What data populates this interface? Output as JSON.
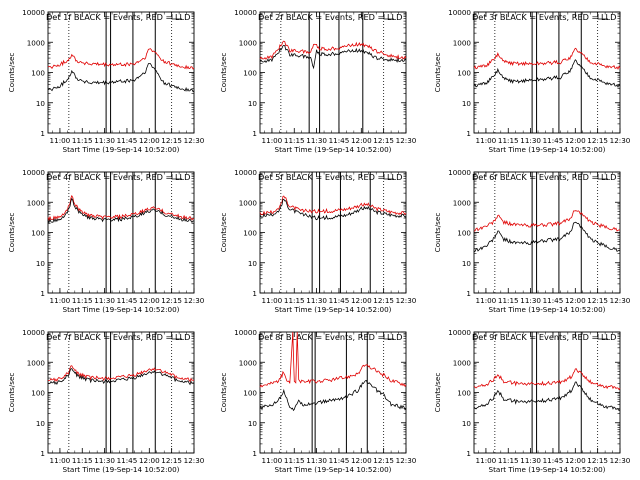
{
  "colors": {
    "events": "#000000",
    "lld": "#e00000",
    "frame": "#000000",
    "background": "#ffffff"
  },
  "chart_data": [
    {
      "type": "line",
      "title": "Det 1f BLACK = Events, RED = LLD",
      "xlabel": "Start Time (19-Sep-14 10:52:00)",
      "ylabel": "Counts/sec",
      "y_scale": "log",
      "ylim": [
        1,
        10000
      ],
      "yticks": [
        "1",
        "10",
        "100",
        "1000",
        "10000"
      ],
      "xlim": [
        "10:52",
        "12:30"
      ],
      "xticks": [
        "11:00",
        "11:15",
        "11:30",
        "11:45",
        "12:00",
        "12:15",
        "12:30"
      ],
      "dotted_lines": [
        "11:06",
        "12:15"
      ],
      "solid_lines": [
        "11:31",
        "11:34",
        "11:49",
        "12:04"
      ],
      "series": [
        {
          "name": "Events",
          "color": "#000000",
          "x": [
            "10:52",
            "11:00",
            "11:05",
            "11:08",
            "11:12",
            "11:20",
            "11:30",
            "11:40",
            "11:50",
            "11:57",
            "12:00",
            "12:04",
            "12:10",
            "12:20",
            "12:30"
          ],
          "values": [
            25,
            35,
            60,
            110,
            60,
            45,
            45,
            50,
            55,
            100,
            200,
            120,
            45,
            30,
            25
          ]
        },
        {
          "name": "LLD",
          "color": "#e00000",
          "x": [
            "10:52",
            "11:00",
            "11:05",
            "11:08",
            "11:12",
            "11:20",
            "11:30",
            "11:40",
            "11:50",
            "11:57",
            "12:00",
            "12:04",
            "12:10",
            "12:20",
            "12:30"
          ],
          "values": [
            140,
            180,
            250,
            380,
            230,
            190,
            180,
            180,
            190,
            300,
            600,
            450,
            230,
            160,
            140
          ]
        }
      ]
    },
    {
      "type": "line",
      "title": "Det 2f BLACK = Events, RED = LLD",
      "xlabel": "Start Time (19-Sep-14 10:52:00)",
      "ylabel": "Counts/sec",
      "y_scale": "log",
      "ylim": [
        1,
        10000
      ],
      "yticks": [
        "1",
        "10",
        "100",
        "1000",
        "10000"
      ],
      "xlim": [
        "10:52",
        "12:30"
      ],
      "xticks": [
        "11:00",
        "11:15",
        "11:30",
        "11:45",
        "12:00",
        "12:15",
        "12:30"
      ],
      "dotted_lines": [
        "11:06",
        "12:15"
      ],
      "solid_lines": [
        "11:25",
        "11:32",
        "11:45",
        "12:01"
      ],
      "series": [
        {
          "name": "Events",
          "color": "#000000",
          "x": [
            "10:52",
            "11:00",
            "11:08",
            "11:12",
            "11:20",
            "11:26",
            "11:28",
            "11:30",
            "11:33",
            "11:40",
            "11:50",
            "12:00",
            "12:04",
            "12:10",
            "12:20",
            "12:30"
          ],
          "values": [
            240,
            250,
            800,
            400,
            350,
            300,
            150,
            500,
            400,
            400,
            500,
            550,
            450,
            300,
            260,
            250
          ]
        },
        {
          "name": "LLD",
          "color": "#e00000",
          "x": [
            "10:52",
            "11:00",
            "11:08",
            "11:12",
            "11:20",
            "11:26",
            "11:28",
            "11:30",
            "11:33",
            "11:40",
            "11:50",
            "12:00",
            "12:04",
            "12:10",
            "12:20",
            "12:30"
          ],
          "values": [
            300,
            320,
            1100,
            550,
            500,
            450,
            900,
            750,
            600,
            600,
            750,
            900,
            750,
            500,
            350,
            300
          ]
        }
      ]
    },
    {
      "type": "line",
      "title": "Det 3f BLACK = Events, RED = LLD",
      "xlabel": "Start Time (19-Sep-14 10:52:00)",
      "ylabel": "Counts/sec",
      "y_scale": "log",
      "ylim": [
        1,
        10000
      ],
      "yticks": [
        "1",
        "10",
        "100",
        "1000",
        "10000"
      ],
      "xlim": [
        "10:52",
        "12:30"
      ],
      "xticks": [
        "11:00",
        "11:15",
        "11:30",
        "11:45",
        "12:00",
        "12:15",
        "12:30"
      ],
      "dotted_lines": [
        "11:06",
        "12:15"
      ],
      "solid_lines": [
        "11:31",
        "11:34",
        "11:49",
        "12:04"
      ],
      "series": [
        {
          "name": "Events",
          "color": "#000000",
          "x": [
            "10:52",
            "11:00",
            "11:05",
            "11:08",
            "11:12",
            "11:20",
            "11:30",
            "11:40",
            "11:50",
            "11:57",
            "12:00",
            "12:04",
            "12:10",
            "12:20",
            "12:30"
          ],
          "values": [
            35,
            45,
            70,
            120,
            60,
            50,
            55,
            60,
            70,
            120,
            250,
            150,
            70,
            45,
            35
          ]
        },
        {
          "name": "LLD",
          "color": "#e00000",
          "x": [
            "10:52",
            "11:00",
            "11:05",
            "11:08",
            "11:12",
            "11:20",
            "11:30",
            "11:40",
            "11:50",
            "11:57",
            "12:00",
            "12:04",
            "12:10",
            "12:20",
            "12:30"
          ],
          "values": [
            140,
            170,
            250,
            400,
            220,
            200,
            190,
            200,
            220,
            320,
            600,
            420,
            230,
            160,
            140
          ]
        }
      ]
    },
    {
      "type": "line",
      "title": "Det 4f BLACK = Events, RED = LLD",
      "xlabel": "Start Time (19-Sep-14 10:52:00)",
      "ylabel": "Counts/sec",
      "y_scale": "log",
      "ylim": [
        1,
        10000
      ],
      "yticks": [
        "1",
        "10",
        "100",
        "1000",
        "10000"
      ],
      "xlim": [
        "10:52",
        "12:30"
      ],
      "xticks": [
        "11:00",
        "11:15",
        "11:30",
        "11:45",
        "12:00",
        "12:15",
        "12:30"
      ],
      "dotted_lines": [
        "11:06",
        "12:15"
      ],
      "solid_lines": [
        "11:31",
        "11:34",
        "11:49",
        "12:04"
      ],
      "series": [
        {
          "name": "Events",
          "color": "#000000",
          "x": [
            "10:52",
            "11:00",
            "11:05",
            "11:08",
            "11:12",
            "11:20",
            "11:30",
            "11:40",
            "11:50",
            "12:00",
            "12:04",
            "12:10",
            "12:20",
            "12:30"
          ],
          "values": [
            230,
            260,
            450,
            1200,
            500,
            300,
            260,
            270,
            320,
            520,
            550,
            400,
            280,
            240
          ]
        },
        {
          "name": "LLD",
          "color": "#e00000",
          "x": [
            "10:52",
            "11:00",
            "11:05",
            "11:08",
            "11:12",
            "11:20",
            "11:30",
            "11:40",
            "11:50",
            "12:00",
            "12:04",
            "12:10",
            "12:20",
            "12:30"
          ],
          "values": [
            280,
            320,
            550,
            1500,
            600,
            360,
            320,
            330,
            390,
            620,
            650,
            480,
            340,
            290
          ]
        }
      ]
    },
    {
      "type": "line",
      "title": "Det 5f BLACK = Events, RED = LLD",
      "xlabel": "Start Time (19-Sep-14 10:52:00)",
      "ylabel": "Counts/sec",
      "y_scale": "log",
      "ylim": [
        1,
        10000
      ],
      "yticks": [
        "1",
        "10",
        "100",
        "1000",
        "10000"
      ],
      "xlim": [
        "10:52",
        "12:30"
      ],
      "xticks": [
        "11:00",
        "11:15",
        "11:30",
        "11:45",
        "12:00",
        "12:15",
        "12:30"
      ],
      "dotted_lines": [
        "11:06",
        "12:15"
      ],
      "solid_lines": [
        "11:27",
        "11:32",
        "11:46",
        "12:06"
      ],
      "series": [
        {
          "name": "Events",
          "color": "#000000",
          "x": [
            "10:52",
            "11:00",
            "11:05",
            "11:08",
            "11:12",
            "11:20",
            "11:30",
            "11:40",
            "11:50",
            "12:00",
            "12:04",
            "12:10",
            "12:20",
            "12:30"
          ],
          "values": [
            350,
            380,
            550,
            1300,
            600,
            400,
            300,
            320,
            380,
            600,
            650,
            480,
            380,
            350
          ]
        },
        {
          "name": "LLD",
          "color": "#e00000",
          "x": [
            "10:52",
            "11:00",
            "11:05",
            "11:08",
            "11:12",
            "11:20",
            "11:30",
            "11:40",
            "11:50",
            "12:00",
            "12:04",
            "12:10",
            "12:20",
            "12:30"
          ],
          "values": [
            420,
            460,
            680,
            1650,
            750,
            520,
            500,
            520,
            600,
            800,
            850,
            620,
            480,
            430
          ]
        }
      ]
    },
    {
      "type": "line",
      "title": "Det 6f BLACK = Events, RED = LLD",
      "xlabel": "Start Time (19-Sep-14 10:52:00)",
      "ylabel": "Counts/sec",
      "y_scale": "log",
      "ylim": [
        1,
        10000
      ],
      "yticks": [
        "1",
        "10",
        "100",
        "1000",
        "10000"
      ],
      "xlim": [
        "10:52",
        "12:30"
      ],
      "xticks": [
        "11:00",
        "11:15",
        "11:30",
        "11:45",
        "12:00",
        "12:15",
        "12:30"
      ],
      "dotted_lines": [
        "11:06",
        "12:15"
      ],
      "solid_lines": [
        "11:31",
        "11:34",
        "11:49",
        "12:04"
      ],
      "series": [
        {
          "name": "Events",
          "color": "#000000",
          "x": [
            "10:52",
            "11:00",
            "11:05",
            "11:08",
            "11:12",
            "11:20",
            "11:30",
            "11:40",
            "11:50",
            "11:57",
            "12:00",
            "12:04",
            "12:10",
            "12:20",
            "12:30"
          ],
          "values": [
            25,
            35,
            60,
            110,
            60,
            45,
            45,
            55,
            60,
            110,
            250,
            150,
            60,
            35,
            25
          ]
        },
        {
          "name": "LLD",
          "color": "#e00000",
          "x": [
            "10:52",
            "11:00",
            "11:05",
            "11:08",
            "11:12",
            "11:20",
            "11:30",
            "11:40",
            "11:50",
            "11:57",
            "12:00",
            "12:04",
            "12:10",
            "12:20",
            "12:30"
          ],
          "values": [
            120,
            160,
            220,
            360,
            220,
            180,
            170,
            180,
            200,
            300,
            600,
            420,
            220,
            150,
            120
          ]
        }
      ]
    },
    {
      "type": "line",
      "title": "Det 7f BLACK = Events, RED = LLD",
      "xlabel": "Start Time (19-Sep-14 10:52:00)",
      "ylabel": "Counts/sec",
      "y_scale": "log",
      "ylim": [
        1,
        10000
      ],
      "yticks": [
        "1",
        "10",
        "100",
        "1000",
        "10000"
      ],
      "xlim": [
        "10:52",
        "12:30"
      ],
      "xticks": [
        "11:00",
        "11:15",
        "11:30",
        "11:45",
        "12:00",
        "12:15",
        "12:30"
      ],
      "dotted_lines": [
        "11:06",
        "12:15"
      ],
      "solid_lines": [
        "11:31",
        "11:34",
        "11:49",
        "12:04"
      ],
      "series": [
        {
          "name": "Events",
          "color": "#000000",
          "x": [
            "10:52",
            "11:00",
            "11:05",
            "11:08",
            "11:12",
            "11:20",
            "11:30",
            "11:40",
            "11:50",
            "12:00",
            "12:04",
            "12:10",
            "12:20",
            "12:30"
          ],
          "values": [
            200,
            220,
            350,
            600,
            350,
            250,
            230,
            250,
            300,
            450,
            500,
            380,
            240,
            200
          ]
        },
        {
          "name": "LLD",
          "color": "#e00000",
          "x": [
            "10:52",
            "11:00",
            "11:05",
            "11:08",
            "11:12",
            "11:20",
            "11:30",
            "11:40",
            "11:50",
            "12:00",
            "12:04",
            "12:10",
            "12:20",
            "12:30"
          ],
          "values": [
            250,
            280,
            420,
            750,
            420,
            310,
            290,
            310,
            370,
            560,
            620,
            470,
            300,
            250
          ]
        }
      ]
    },
    {
      "type": "line",
      "title": "Det 8f BLACK = Events, RED = LLD",
      "xlabel": "Start Time (19-Sep-14 10:52:00)",
      "ylabel": "Counts/sec",
      "y_scale": "log",
      "ylim": [
        1,
        10000
      ],
      "yticks": [
        "1",
        "10",
        "100",
        "1000",
        "10000"
      ],
      "xlim": [
        "10:52",
        "12:30"
      ],
      "xticks": [
        "11:00",
        "11:15",
        "11:30",
        "11:45",
        "12:00",
        "12:15",
        "12:30"
      ],
      "dotted_lines": [
        "11:06",
        "12:15"
      ],
      "solid_lines": [
        "11:27",
        "11:29",
        "11:50",
        "12:04"
      ],
      "series": [
        {
          "name": "Events",
          "color": "#000000",
          "x": [
            "10:52",
            "11:00",
            "11:05",
            "11:08",
            "11:10",
            "11:12",
            "11:15",
            "11:18",
            "11:20",
            "11:30",
            "11:40",
            "11:50",
            "11:58",
            "12:02",
            "12:08",
            "12:15",
            "12:20",
            "12:30"
          ],
          "values": [
            30,
            40,
            60,
            120,
            60,
            35,
            25,
            60,
            40,
            45,
            55,
            70,
            120,
            250,
            150,
            80,
            40,
            30
          ]
        },
        {
          "name": "LLD",
          "color": "#e00000",
          "x": [
            "10:52",
            "11:00",
            "11:05",
            "11:08",
            "11:10",
            "11:12",
            "11:14",
            "11:15",
            "11:16",
            "11:17",
            "11:18",
            "11:20",
            "11:30",
            "11:40",
            "11:50",
            "11:58",
            "12:02",
            "12:08",
            "12:15",
            "12:20",
            "12:30"
          ],
          "values": [
            170,
            200,
            260,
            480,
            260,
            200,
            10000,
            230,
            210,
            10000,
            240,
            230,
            230,
            260,
            320,
            430,
            800,
            600,
            380,
            250,
            180
          ]
        }
      ]
    },
    {
      "type": "line",
      "title": "Det 9f BLACK = Events, RED = LLD",
      "xlabel": "Start Time (19-Sep-14 10:52:00)",
      "ylabel": "Counts/sec",
      "y_scale": "log",
      "ylim": [
        1,
        10000
      ],
      "yticks": [
        "1",
        "10",
        "100",
        "1000",
        "10000"
      ],
      "xlim": [
        "10:52",
        "12:30"
      ],
      "xticks": [
        "11:00",
        "11:15",
        "11:30",
        "11:45",
        "12:00",
        "12:15",
        "12:30"
      ],
      "dotted_lines": [
        "11:06",
        "12:15"
      ],
      "solid_lines": [
        "11:31",
        "11:34",
        "11:49",
        "12:04"
      ],
      "series": [
        {
          "name": "Events",
          "color": "#000000",
          "x": [
            "10:52",
            "11:00",
            "11:05",
            "11:08",
            "11:12",
            "11:20",
            "11:30",
            "11:40",
            "11:50",
            "11:57",
            "12:00",
            "12:04",
            "12:10",
            "12:20",
            "12:30"
          ],
          "values": [
            30,
            40,
            65,
            120,
            60,
            50,
            50,
            55,
            65,
            110,
            230,
            140,
            60,
            35,
            28
          ]
        },
        {
          "name": "LLD",
          "color": "#e00000",
          "x": [
            "10:52",
            "11:00",
            "11:05",
            "11:08",
            "11:12",
            "11:20",
            "11:30",
            "11:40",
            "11:50",
            "11:57",
            "12:00",
            "12:04",
            "12:10",
            "12:20",
            "12:30"
          ],
          "values": [
            150,
            180,
            260,
            400,
            230,
            200,
            190,
            200,
            220,
            320,
            620,
            430,
            230,
            160,
            140
          ]
        }
      ]
    }
  ]
}
